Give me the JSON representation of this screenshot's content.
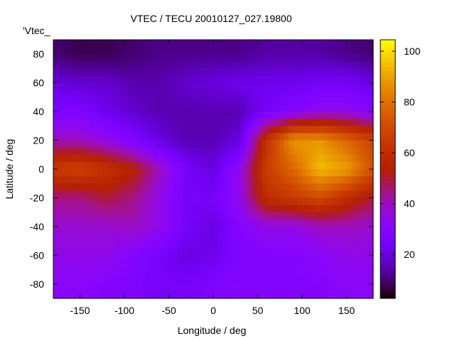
{
  "chart_data": {
    "type": "heatmap",
    "title": "VTEC / TECU 20010127_027.19800",
    "xlabel": "Longitude / deg",
    "ylabel": "Latitude / deg",
    "key_label": "'Vtec_",
    "xlim": [
      -180,
      180
    ],
    "ylim": [
      -90,
      90
    ],
    "xticks": [
      -150,
      -100,
      -50,
      0,
      50,
      100,
      150
    ],
    "yticks": [
      -80,
      -60,
      -40,
      -20,
      0,
      20,
      40,
      60,
      80
    ],
    "cbrange": [
      2.7,
      104.5
    ],
    "cbticks": [
      20,
      40,
      60,
      80,
      100
    ],
    "grid_lon": [
      -180,
      -150,
      -120,
      -90,
      -60,
      -30,
      0,
      30,
      60,
      90,
      120,
      150,
      180
    ],
    "grid_lat": [
      80,
      60,
      40,
      20,
      0,
      -20,
      -40,
      -60,
      -80
    ],
    "values": [
      [
        10,
        8,
        8,
        10,
        12,
        12,
        12,
        12,
        14,
        14,
        14,
        12,
        10
      ],
      [
        20,
        18,
        18,
        15,
        15,
        18,
        20,
        22,
        22,
        22,
        24,
        24,
        20
      ],
      [
        28,
        28,
        22,
        18,
        15,
        15,
        15,
        15,
        25,
        30,
        35,
        35,
        30
      ],
      [
        40,
        40,
        35,
        28,
        20,
        15,
        15,
        20,
        62,
        88,
        88,
        78,
        68
      ],
      [
        65,
        68,
        62,
        55,
        40,
        25,
        20,
        35,
        66,
        78,
        95,
        90,
        72
      ],
      [
        45,
        45,
        50,
        45,
        35,
        25,
        25,
        35,
        60,
        65,
        70,
        60,
        50
      ],
      [
        38,
        38,
        38,
        40,
        35,
        25,
        20,
        30,
        35,
        35,
        40,
        40,
        38
      ],
      [
        35,
        35,
        35,
        30,
        25,
        20,
        22,
        28,
        30,
        30,
        32,
        35,
        35
      ],
      [
        32,
        32,
        30,
        28,
        25,
        25,
        28,
        30,
        30,
        30,
        30,
        32,
        32
      ]
    ]
  }
}
